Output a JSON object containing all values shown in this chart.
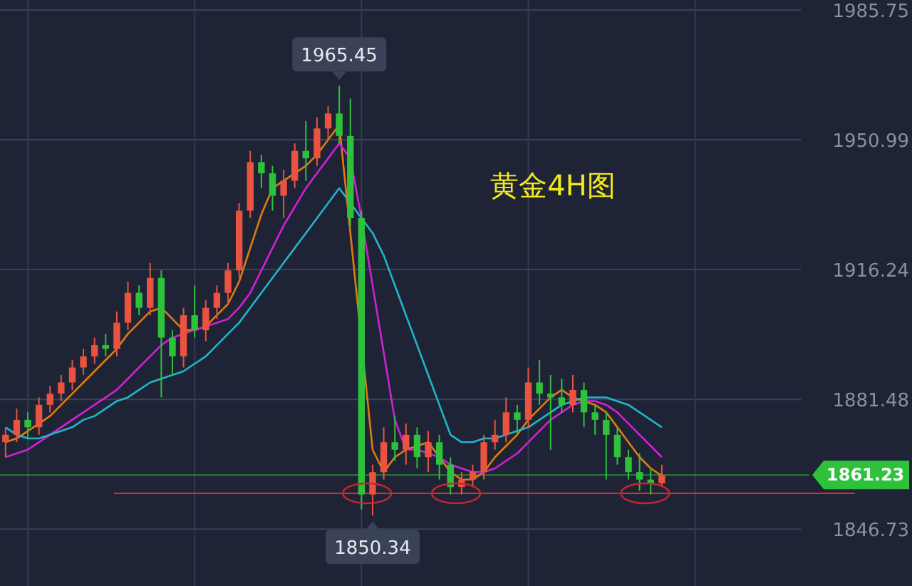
{
  "chart_data": {
    "type": "candlestick",
    "title": "黄金4H图",
    "categories": [
      null,
      null,
      null,
      null,
      null,
      null,
      null,
      null,
      null,
      null,
      null,
      null,
      null,
      null,
      null,
      null,
      null,
      null,
      null,
      null,
      null,
      null,
      null,
      null,
      null,
      null,
      null,
      null,
      null,
      null,
      null,
      null,
      null,
      null,
      null,
      null,
      null,
      null,
      null,
      null,
      null,
      null,
      null,
      null,
      null,
      null,
      null,
      null,
      null,
      null,
      null,
      null,
      null,
      null,
      null,
      null,
      null,
      null,
      null,
      null
    ],
    "series": [
      {
        "ohlc": [
          [
            1870,
            1874,
            1866,
            1872
          ],
          [
            1872,
            1879,
            1870,
            1876
          ],
          [
            1876,
            1878,
            1871,
            1874
          ],
          [
            1874,
            1882,
            1872,
            1880
          ],
          [
            1880,
            1885,
            1878,
            1883
          ],
          [
            1883,
            1888,
            1881,
            1886
          ],
          [
            1886,
            1892,
            1884,
            1890
          ],
          [
            1890,
            1895,
            1888,
            1893
          ],
          [
            1893,
            1898,
            1891,
            1896
          ],
          [
            1896,
            1899,
            1893,
            1895
          ],
          [
            1895,
            1905,
            1893,
            1902
          ],
          [
            1902,
            1913,
            1900,
            1910
          ],
          [
            1910,
            1912,
            1904,
            1906
          ],
          [
            1906,
            1918,
            1904,
            1914
          ],
          [
            1914,
            1916,
            1882,
            1898
          ],
          [
            1898,
            1900,
            1888,
            1893
          ],
          [
            1893,
            1906,
            1890,
            1904
          ],
          [
            1904,
            1912,
            1898,
            1900
          ],
          [
            1900,
            1908,
            1897,
            1906
          ],
          [
            1906,
            1912,
            1903,
            1910
          ],
          [
            1910,
            1918,
            1907,
            1916
          ],
          [
            1916,
            1934,
            1914,
            1932
          ],
          [
            1932,
            1948,
            1930,
            1945
          ],
          [
            1945,
            1947,
            1938,
            1942
          ],
          [
            1942,
            1944,
            1932,
            1936
          ],
          [
            1936,
            1943,
            1930,
            1940
          ],
          [
            1940,
            1950,
            1938,
            1948
          ],
          [
            1948,
            1956,
            1940,
            1946
          ],
          [
            1946,
            1957,
            1944,
            1954
          ],
          [
            1954,
            1960,
            1951,
            1958
          ],
          [
            1958,
            1965.45,
            1950,
            1952
          ],
          [
            1952,
            1962,
            1928,
            1930
          ],
          [
            1930,
            1932,
            1852,
            1856
          ],
          [
            1856,
            1864,
            1850.34,
            1862
          ],
          [
            1862,
            1874,
            1860,
            1870
          ],
          [
            1870,
            1877,
            1865,
            1868
          ],
          [
            1868,
            1875,
            1864,
            1872
          ],
          [
            1872,
            1874,
            1863,
            1866
          ],
          [
            1866,
            1873,
            1862,
            1870
          ],
          [
            1870,
            1872,
            1860,
            1864
          ],
          [
            1864,
            1866,
            1856,
            1858
          ],
          [
            1858,
            1862,
            1856,
            1860
          ],
          [
            1860,
            1864,
            1858,
            1862
          ],
          [
            1862,
            1872,
            1860,
            1870
          ],
          [
            1870,
            1876,
            1868,
            1872
          ],
          [
            1872,
            1882,
            1870,
            1878
          ],
          [
            1878,
            1880,
            1872,
            1876
          ],
          [
            1876,
            1890,
            1874,
            1886
          ],
          [
            1886,
            1892,
            1880,
            1883
          ],
          [
            1883,
            1888,
            1868,
            1882
          ],
          [
            1882,
            1887,
            1878,
            1880
          ],
          [
            1880,
            1888,
            1878,
            1884
          ],
          [
            1884,
            1886,
            1874,
            1878
          ],
          [
            1878,
            1880,
            1872,
            1876
          ],
          [
            1876,
            1878,
            1860,
            1872
          ],
          [
            1872,
            1874,
            1864,
            1866
          ],
          [
            1866,
            1868,
            1860,
            1862
          ],
          [
            1862,
            1867,
            1857,
            1860
          ],
          [
            1860,
            1863,
            1856,
            1859
          ],
          [
            1859,
            1864,
            1858,
            1861.23
          ]
        ],
        "colors": [
          "#e9533f",
          "#e9533f",
          "#2ec23b",
          "#e9533f",
          "#e9533f",
          "#e9533f",
          "#e9533f",
          "#e9533f",
          "#e9533f",
          "#2ec23b",
          "#e9533f",
          "#e9533f",
          "#2ec23b",
          "#e9533f",
          "#2ec23b",
          "#2ec23b",
          "#e9533f",
          "#2ec23b",
          "#e9533f",
          "#e9533f",
          "#e9533f",
          "#e9533f",
          "#e9533f",
          "#2ec23b",
          "#2ec23b",
          "#e9533f",
          "#e9533f",
          "#2ec23b",
          "#e9533f",
          "#e9533f",
          "#2ec23b",
          "#2ec23b",
          "#2ec23b",
          "#e9533f",
          "#e9533f",
          "#2ec23b",
          "#e9533f",
          "#2ec23b",
          "#e9533f",
          "#2ec23b",
          "#2ec23b",
          "#e9533f",
          "#e9533f",
          "#e9533f",
          "#e9533f",
          "#e9533f",
          "#2ec23b",
          "#e9533f",
          "#2ec23b",
          "#2ec23b",
          "#2ec23b",
          "#e9533f",
          "#2ec23b",
          "#2ec23b",
          "#2ec23b",
          "#2ec23b",
          "#2ec23b",
          "#2ec23b",
          "#2ec23b",
          "#e9533f"
        ]
      },
      {
        "type": "line",
        "color": "#e07b12",
        "values": [
          1870,
          1871,
          1873,
          1875,
          1877,
          1880,
          1883,
          1886,
          1889,
          1892,
          1895,
          1899,
          1902,
          1905,
          1906,
          1903,
          1900,
          1900,
          1901,
          1904,
          1907,
          1913,
          1922,
          1931,
          1938,
          1940,
          1942,
          1944,
          1947,
          1951,
          1955,
          null,
          null,
          1868,
          1862,
          1866,
          1868,
          1869,
          1870,
          1866,
          1862,
          1860,
          1860,
          1862,
          1866,
          1869,
          1872,
          1876,
          1879,
          1882,
          1884,
          1882,
          1881,
          1880,
          1878,
          1874,
          1870,
          1866,
          1863,
          1861
        ]
      },
      {
        "type": "line",
        "color": "#d21fd8",
        "values": [
          1866,
          1867,
          1868,
          1870,
          1872,
          1874,
          1876,
          1878,
          1880,
          1882,
          1884,
          1887,
          1890,
          1893,
          1896,
          1898,
          1899,
          1900,
          1901,
          1902,
          1903,
          1906,
          1910,
          1916,
          1922,
          1928,
          1933,
          1938,
          1942,
          1946,
          1950,
          1946,
          1930,
          1912,
          1894,
          1876,
          1868,
          1868,
          1867,
          1866,
          1864,
          1863,
          1862,
          1862,
          1863,
          1865,
          1867,
          1870,
          1873,
          1876,
          1878,
          1880,
          1881,
          1881,
          1880,
          1878,
          1875,
          1872,
          1869,
          1866
        ]
      },
      {
        "type": "line",
        "color": "#22b5c8",
        "values": [
          1874,
          1872,
          1871,
          1871,
          1872,
          1873,
          1874,
          1876,
          1877,
          1879,
          1881,
          1882,
          1884,
          1886,
          1887,
          1888,
          1889,
          1891,
          1893,
          1896,
          1899,
          1902,
          1906,
          1910,
          1914,
          1918,
          1922,
          1926,
          1930,
          1934,
          1938,
          1934,
          1930,
          1926,
          1920,
          1912,
          1904,
          1896,
          1888,
          1880,
          1872,
          1870,
          1870,
          1871,
          1871,
          1872,
          1873,
          1874,
          1876,
          1878,
          1880,
          1881,
          1882,
          1882,
          1882,
          1881,
          1880,
          1878,
          1876,
          1874
        ]
      }
    ],
    "ylim": [
      1831.5,
      1988.4
    ],
    "yticks": [
      1846.73,
      1881.48,
      1916.24,
      1950.99,
      1985.75
    ],
    "grid": true,
    "ref_lines": [
      {
        "axis": "y",
        "value": 1861.23,
        "label": "1861.23",
        "color": "#2ec23b"
      },
      {
        "axis": "y",
        "value": 1856.3,
        "color": "#e8262c"
      }
    ],
    "annotations": [
      {
        "text": "1965.45",
        "y": 1965.45
      },
      {
        "text": "1850.34",
        "y": 1850.34
      }
    ]
  }
}
